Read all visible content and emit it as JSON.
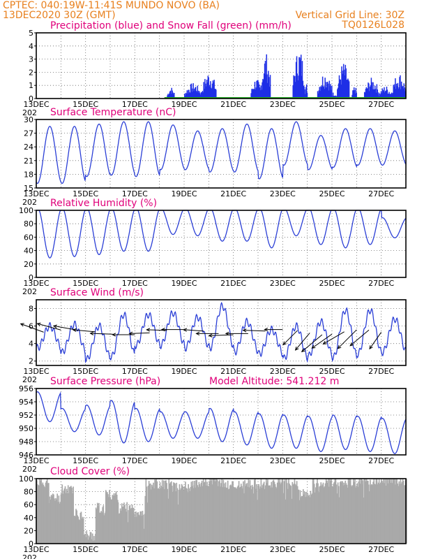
{
  "header": {
    "line1_left": "CPTEC:  040:19W-11:41S  MUNDO NOVO (BA)",
    "line2_left": "13DEC2020 30Z (GMT)",
    "line2_right": "Vertical Grid Line: 30Z",
    "line3_right": "TQ0126L028"
  },
  "colors": {
    "header": "#e8801e",
    "panel_title": "#e0007a",
    "precip": "#1f2fe6",
    "snow": "#22aa22",
    "line": "#2b3fd6",
    "cloud": "#a9a9a9"
  },
  "x_axis": {
    "day_labels": [
      "13DEC",
      "15DEC",
      "17DEC",
      "19DEC",
      "21DEC",
      "23DEC",
      "25DEC",
      "27DEC"
    ],
    "first_label_prefix": "202",
    "range_days": [
      0,
      15
    ],
    "label_positions_days": [
      0,
      2,
      4,
      6,
      8,
      10,
      12,
      14
    ]
  },
  "chart_data": [
    {
      "id": "precip",
      "type": "bar",
      "title": "Precipitation (blue) and Snow Fall (green) (mm/h)",
      "ylim": [
        0,
        5
      ],
      "yticks": [
        0,
        1,
        2,
        3,
        4,
        5
      ],
      "bursts": [
        {
          "start": 5.3,
          "end": 5.6,
          "peak": 0.9
        },
        {
          "start": 6.0,
          "end": 6.7,
          "peak": 1.2
        },
        {
          "start": 6.7,
          "end": 7.3,
          "peak": 2.1
        },
        {
          "start": 8.7,
          "end": 9.1,
          "peak": 1.6
        },
        {
          "start": 9.1,
          "end": 9.5,
          "peak": 3.5
        },
        {
          "start": 10.4,
          "end": 10.9,
          "peak": 3.9
        },
        {
          "start": 10.9,
          "end": 11.0,
          "peak": 1.2
        },
        {
          "start": 11.4,
          "end": 12.0,
          "peak": 2.1
        },
        {
          "start": 11.9,
          "end": 12.2,
          "peak": 0.5
        },
        {
          "start": 12.2,
          "end": 12.7,
          "peak": 2.8
        },
        {
          "start": 12.8,
          "end": 13.0,
          "peak": 1.0
        },
        {
          "start": 13.3,
          "end": 13.9,
          "peak": 1.6
        },
        {
          "start": 13.9,
          "end": 14.4,
          "peak": 1.0
        },
        {
          "start": 14.4,
          "end": 15.0,
          "peak": 2.0
        }
      ]
    },
    {
      "id": "temp",
      "type": "line",
      "title": "Surface Temperature (nC)",
      "ylim": [
        15,
        30
      ],
      "yticks": [
        15,
        18,
        21,
        24,
        27,
        30
      ],
      "daily_max": [
        28.5,
        28.5,
        29.0,
        29.5,
        29.5,
        28.8,
        27.5,
        28.0,
        29.0,
        28.0,
        29.5,
        26.5,
        28.0,
        28.0,
        27.5
      ],
      "daily_min": [
        16.0,
        16.0,
        17.5,
        17.8,
        17.5,
        19.0,
        19.0,
        18.5,
        18.5,
        17.0,
        20.0,
        19.0,
        19.5,
        20.0,
        20.0
      ]
    },
    {
      "id": "rh",
      "type": "line",
      "title": "Relative Humidity (%)",
      "ylim": [
        0,
        100
      ],
      "yticks": [
        0,
        20,
        40,
        60,
        80,
        100
      ],
      "daily_max": [
        100,
        100,
        100,
        100,
        100,
        100,
        100,
        100,
        100,
        100,
        100,
        100,
        100,
        100,
        85
      ],
      "daily_min": [
        25,
        27,
        30,
        35,
        35,
        60,
        58,
        50,
        50,
        40,
        58,
        45,
        40,
        45,
        55
      ]
    },
    {
      "id": "wind",
      "type": "line",
      "title": "Surface Wind (m/s)",
      "ylim": [
        1.5,
        9
      ],
      "yticks": [
        2,
        4,
        6,
        8
      ],
      "daily_max": [
        6.0,
        6.2,
        6.0,
        7.3,
        7.3,
        7.5,
        7.0,
        8.3,
        6.5,
        5.6,
        6.0,
        6.5,
        7.8,
        7.8,
        6.8
      ],
      "daily_min": [
        3.5,
        3.0,
        2.2,
        2.5,
        3.8,
        3.8,
        3.5,
        3.5,
        3.0,
        2.8,
        2.3,
        2.6,
        2.4,
        2.8,
        3.0
      ],
      "vectors_days": [
        0.3,
        1.0,
        1.6,
        2.4,
        3.1,
        4.0,
        4.6,
        5.3,
        6.0,
        6.8,
        7.4,
        8.0,
        8.6,
        9.3,
        10.0,
        10.6,
        11.1,
        11.6,
        12.0,
        12.5,
        13.0,
        13.5,
        14.0
      ],
      "vector_angles_deg": [
        160,
        165,
        170,
        175,
        178,
        180,
        182,
        178,
        180,
        176,
        180,
        182,
        180,
        178,
        180,
        225,
        230,
        220,
        215,
        210,
        225,
        220,
        235
      ],
      "vector_speeds": [
        4.5,
        4.5,
        4.0,
        4.0,
        4.0,
        4.0,
        3.5,
        3.5,
        4.0,
        3.5,
        4.0,
        4.5,
        4.0,
        4.0,
        3.0,
        3.5,
        4.0,
        5.0,
        4.5,
        4.5,
        5.0,
        4.5,
        3.5
      ]
    },
    {
      "id": "pressure",
      "type": "line",
      "title": "Surface Pressure (hPa)",
      "annotation": "Model Altitude: 541.212  m",
      "ylim": [
        946,
        956
      ],
      "yticks": [
        946,
        948,
        950,
        952,
        954,
        956
      ],
      "daily_max": [
        955.5,
        953.0,
        953.5,
        954.2,
        953.0,
        952.5,
        952.5,
        953.0,
        952.5,
        952.2,
        952.0,
        951.8,
        952.0,
        951.8,
        951.5
      ],
      "daily_min": [
        951.0,
        949.5,
        949.0,
        947.8,
        948.0,
        948.5,
        948.5,
        948.0,
        947.5,
        947.0,
        947.0,
        946.5,
        946.8,
        946.5,
        946.2
      ]
    },
    {
      "id": "cloud",
      "type": "area",
      "title": "Cloud Cover (%)",
      "ylim": [
        0,
        100
      ],
      "yticks": [
        0,
        20,
        40,
        60,
        80,
        100
      ],
      "segments": [
        {
          "start": 0.0,
          "end": 0.5,
          "value": 95
        },
        {
          "start": 0.5,
          "end": 1.0,
          "value": 70
        },
        {
          "start": 1.0,
          "end": 1.5,
          "value": 85
        },
        {
          "start": 1.5,
          "end": 1.9,
          "value": 45
        },
        {
          "start": 1.9,
          "end": 2.4,
          "value": 12
        },
        {
          "start": 2.4,
          "end": 2.8,
          "value": 55
        },
        {
          "start": 2.8,
          "end": 3.3,
          "value": 75
        },
        {
          "start": 3.3,
          "end": 3.9,
          "value": 55
        },
        {
          "start": 3.9,
          "end": 4.4,
          "value": 50
        },
        {
          "start": 4.4,
          "end": 5.4,
          "value": 92
        },
        {
          "start": 5.4,
          "end": 6.4,
          "value": 88
        },
        {
          "start": 6.4,
          "end": 7.6,
          "value": 95
        },
        {
          "start": 7.6,
          "end": 8.8,
          "value": 90
        },
        {
          "start": 8.8,
          "end": 9.8,
          "value": 93
        },
        {
          "start": 9.8,
          "end": 10.6,
          "value": 95
        },
        {
          "start": 10.6,
          "end": 11.2,
          "value": 75
        },
        {
          "start": 11.2,
          "end": 12.4,
          "value": 95
        },
        {
          "start": 12.4,
          "end": 13.2,
          "value": 95
        },
        {
          "start": 13.2,
          "end": 15.0,
          "value": 97
        }
      ]
    }
  ]
}
